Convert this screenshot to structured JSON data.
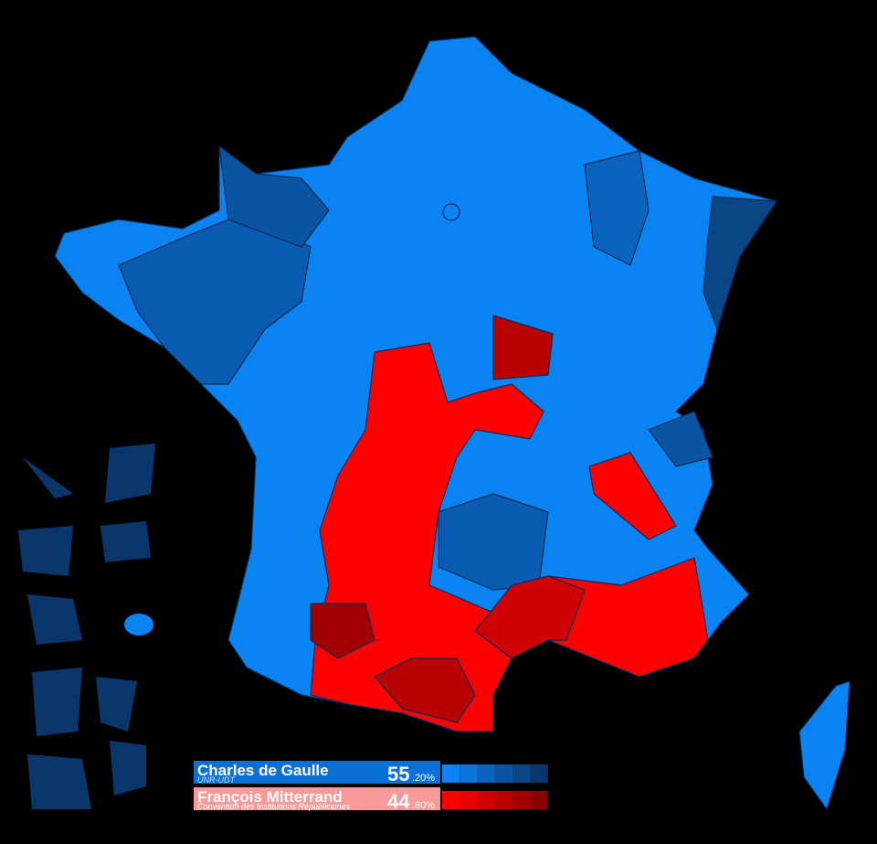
{
  "legend": [
    {
      "candidate": "Charles de Gaulle",
      "party": "UNR-UDT",
      "share_major": "55",
      "share_minor": ".20%",
      "shades": [
        "#0a84f2",
        "#0b74d8",
        "#0a64bd",
        "#0a55a2",
        "#0a4686",
        "#0a376b"
      ]
    },
    {
      "candidate": "François Mitterrand",
      "party": "Convention des Institutions Républicaines",
      "share_major": "44",
      "share_minor": ".80%",
      "shades": [
        "#ff0000",
        "#e80000",
        "#d00000",
        "#b80000",
        "#a00000",
        "#880000"
      ]
    }
  ]
}
